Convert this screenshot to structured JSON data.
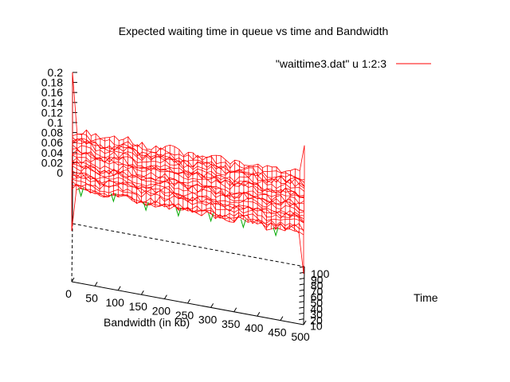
{
  "chart_data": {
    "type": "surface",
    "title": "Expected waiting time in queue vs time and Bandwidth",
    "xlabel": "Bandwidth (in kb)",
    "ylabel": "Time",
    "zlabel": "",
    "xlim": [
      0,
      500
    ],
    "ylim": [
      0,
      100
    ],
    "zlim": [
      0,
      0.2
    ],
    "x_ticks": [
      "0",
      "50",
      "100",
      "150",
      "200",
      "250",
      "300",
      "350",
      "400",
      "450",
      "500"
    ],
    "y_ticks": [
      "10",
      "20",
      "30",
      "40",
      "50",
      "60",
      "70",
      "80",
      "90",
      "100"
    ],
    "z_ticks": [
      "0",
      "0.02",
      "0.04",
      "0.06",
      "0.08",
      "0.1",
      "0.12",
      "0.14",
      "0.16",
      "0.18",
      "0.2"
    ],
    "legend_position": "top-right",
    "series": [
      {
        "name": "\"waittime3.dat\" u 1:2:3",
        "color": "#ff0000",
        "underside_color": "#00aa00",
        "typical_value": 0.08,
        "spikes": [
          {
            "x": 0,
            "y": 0,
            "z": 0.0
          },
          {
            "x": 500,
            "y": 0,
            "z": 0.0
          },
          {
            "x": 0,
            "y": 100,
            "z": 0.2
          },
          {
            "x": 500,
            "y": 100,
            "z": 0.14
          }
        ]
      }
    ]
  }
}
